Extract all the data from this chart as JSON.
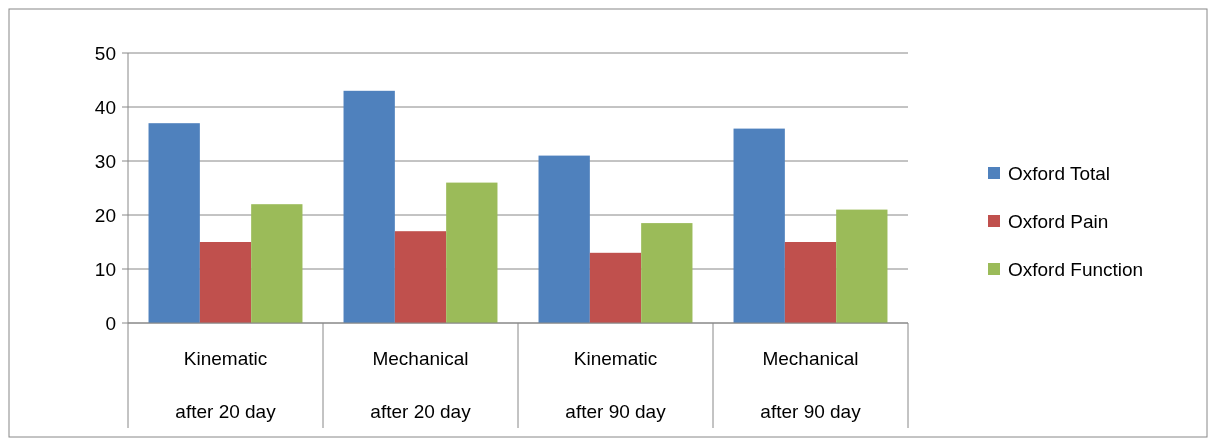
{
  "chart_data": {
    "type": "bar",
    "categories": [
      "Kinematic after 20 day",
      "Mechanical after 20 day",
      "Kinematic after 90 day",
      "Mechanical after 90 day"
    ],
    "series": [
      {
        "name": "Oxford Total",
        "color": "#4f81bd",
        "values": [
          37,
          43,
          31,
          36
        ]
      },
      {
        "name": "Oxford Pain",
        "color": "#c0504d",
        "values": [
          15,
          17,
          13,
          15
        ]
      },
      {
        "name": "Oxford Function",
        "color": "#9bbb59",
        "values": [
          22,
          26,
          18.5,
          21
        ]
      }
    ],
    "ylim": [
      0,
      50
    ],
    "yticks": [
      0,
      10,
      20,
      30,
      40,
      50
    ],
    "grid": "y",
    "legend": "right"
  }
}
